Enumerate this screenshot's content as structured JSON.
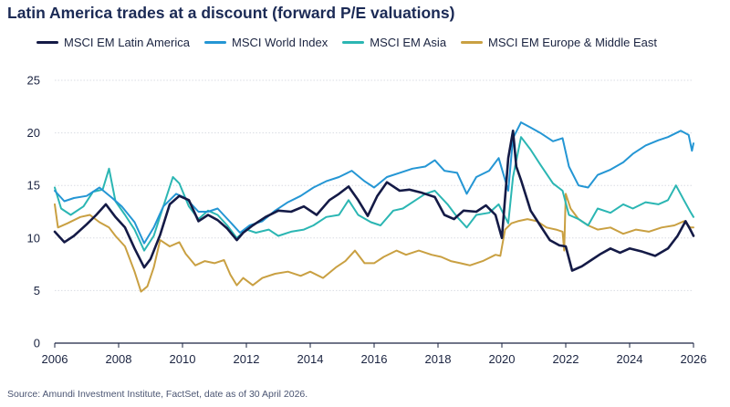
{
  "title": "Latin America trades at a discount (forward P/E valuations)",
  "source": "Source: Amundi Investment Institute, FactSet, date as of 30 April 2026.",
  "chart_data": {
    "type": "line",
    "title": "Latin America trades at a discount (forward P/E valuations)",
    "xlabel": "",
    "ylabel": "",
    "xlim": [
      2006,
      2026
    ],
    "ylim": [
      0,
      25
    ],
    "x_ticks": [
      "2006",
      "2008",
      "2010",
      "2012",
      "2014",
      "2016",
      "2018",
      "2020",
      "2022",
      "2024",
      "2026"
    ],
    "y_ticks": [
      "0",
      "5",
      "10",
      "15",
      "20",
      "25"
    ],
    "grid": "horizontal",
    "legend_position": "top",
    "series": [
      {
        "name": "MSCI EM Latin America",
        "color": "#141a46",
        "points": [
          [
            2006.0,
            10.6
          ],
          [
            2006.3,
            9.6
          ],
          [
            2006.6,
            10.2
          ],
          [
            2007.0,
            11.3
          ],
          [
            2007.3,
            12.2
          ],
          [
            2007.6,
            13.2
          ],
          [
            2007.9,
            12.0
          ],
          [
            2008.2,
            11.0
          ],
          [
            2008.5,
            9.0
          ],
          [
            2008.8,
            7.2
          ],
          [
            2009.0,
            8.0
          ],
          [
            2009.3,
            10.3
          ],
          [
            2009.6,
            13.2
          ],
          [
            2009.9,
            14.0
          ],
          [
            2010.2,
            13.6
          ],
          [
            2010.5,
            11.6
          ],
          [
            2010.8,
            12.2
          ],
          [
            2011.1,
            11.7
          ],
          [
            2011.4,
            10.9
          ],
          [
            2011.7,
            9.8
          ],
          [
            2011.9,
            10.5
          ],
          [
            2012.2,
            11.2
          ],
          [
            2012.6,
            12.0
          ],
          [
            2013.0,
            12.6
          ],
          [
            2013.4,
            12.5
          ],
          [
            2013.8,
            13.0
          ],
          [
            2014.2,
            12.2
          ],
          [
            2014.6,
            13.6
          ],
          [
            2014.9,
            14.2
          ],
          [
            2015.2,
            14.9
          ],
          [
            2015.5,
            13.6
          ],
          [
            2015.8,
            12.1
          ],
          [
            2016.1,
            14.0
          ],
          [
            2016.4,
            15.3
          ],
          [
            2016.8,
            14.5
          ],
          [
            2017.1,
            14.6
          ],
          [
            2017.5,
            14.3
          ],
          [
            2017.9,
            13.9
          ],
          [
            2018.2,
            12.2
          ],
          [
            2018.5,
            11.8
          ],
          [
            2018.8,
            12.6
          ],
          [
            2019.2,
            12.5
          ],
          [
            2019.5,
            13.1
          ],
          [
            2019.8,
            12.2
          ],
          [
            2020.0,
            10.0
          ],
          [
            2020.1,
            13.8
          ],
          [
            2020.2,
            17.6
          ],
          [
            2020.35,
            20.2
          ],
          [
            2020.45,
            16.8
          ],
          [
            2020.6,
            15.5
          ],
          [
            2020.9,
            12.6
          ],
          [
            2021.2,
            11.2
          ],
          [
            2021.5,
            9.8
          ],
          [
            2021.8,
            9.3
          ],
          [
            2022.0,
            9.2
          ],
          [
            2022.2,
            6.9
          ],
          [
            2022.5,
            7.3
          ],
          [
            2022.8,
            7.9
          ],
          [
            2023.1,
            8.5
          ],
          [
            2023.4,
            9.0
          ],
          [
            2023.7,
            8.6
          ],
          [
            2024.0,
            9.0
          ],
          [
            2024.4,
            8.7
          ],
          [
            2024.8,
            8.3
          ],
          [
            2025.2,
            9.0
          ],
          [
            2025.5,
            10.2
          ],
          [
            2025.75,
            11.6
          ],
          [
            2025.9,
            10.8
          ],
          [
            2026.0,
            10.2
          ]
        ]
      },
      {
        "name": "MSCI World Index",
        "color": "#2496d4",
        "points": [
          [
            2006.0,
            14.5
          ],
          [
            2006.3,
            13.5
          ],
          [
            2006.6,
            13.8
          ],
          [
            2007.0,
            14.0
          ],
          [
            2007.4,
            14.8
          ],
          [
            2007.8,
            13.8
          ],
          [
            2008.1,
            13.0
          ],
          [
            2008.5,
            11.5
          ],
          [
            2008.8,
            9.5
          ],
          [
            2009.1,
            11.0
          ],
          [
            2009.4,
            13.0
          ],
          [
            2009.8,
            14.2
          ],
          [
            2010.1,
            13.8
          ],
          [
            2010.5,
            12.5
          ],
          [
            2010.8,
            12.5
          ],
          [
            2011.1,
            12.8
          ],
          [
            2011.5,
            11.5
          ],
          [
            2011.8,
            10.5
          ],
          [
            2012.1,
            11.2
          ],
          [
            2012.5,
            11.6
          ],
          [
            2012.9,
            12.6
          ],
          [
            2013.3,
            13.4
          ],
          [
            2013.7,
            14.0
          ],
          [
            2014.1,
            14.8
          ],
          [
            2014.5,
            15.4
          ],
          [
            2014.9,
            15.8
          ],
          [
            2015.3,
            16.4
          ],
          [
            2015.7,
            15.4
          ],
          [
            2016.0,
            14.8
          ],
          [
            2016.4,
            15.8
          ],
          [
            2016.8,
            16.2
          ],
          [
            2017.2,
            16.6
          ],
          [
            2017.6,
            16.8
          ],
          [
            2017.9,
            17.4
          ],
          [
            2018.2,
            16.4
          ],
          [
            2018.6,
            16.2
          ],
          [
            2018.9,
            14.2
          ],
          [
            2019.2,
            15.8
          ],
          [
            2019.6,
            16.4
          ],
          [
            2019.9,
            17.6
          ],
          [
            2020.2,
            14.5
          ],
          [
            2020.35,
            19.5
          ],
          [
            2020.6,
            21.0
          ],
          [
            2020.9,
            20.5
          ],
          [
            2021.2,
            20.0
          ],
          [
            2021.6,
            19.2
          ],
          [
            2021.9,
            19.5
          ],
          [
            2022.1,
            16.8
          ],
          [
            2022.4,
            15.0
          ],
          [
            2022.7,
            14.8
          ],
          [
            2023.0,
            16.0
          ],
          [
            2023.4,
            16.5
          ],
          [
            2023.8,
            17.2
          ],
          [
            2024.1,
            18.0
          ],
          [
            2024.5,
            18.8
          ],
          [
            2024.9,
            19.3
          ],
          [
            2025.2,
            19.6
          ],
          [
            2025.6,
            20.2
          ],
          [
            2025.85,
            19.8
          ],
          [
            2025.95,
            18.3
          ],
          [
            2026.0,
            19.0
          ]
        ]
      },
      {
        "name": "MSCI EM Asia",
        "color": "#2bb6b3",
        "points": [
          [
            2006.0,
            14.8
          ],
          [
            2006.2,
            12.8
          ],
          [
            2006.5,
            12.2
          ],
          [
            2006.9,
            13.0
          ],
          [
            2007.2,
            14.4
          ],
          [
            2007.5,
            14.6
          ],
          [
            2007.7,
            16.6
          ],
          [
            2007.9,
            13.5
          ],
          [
            2008.2,
            12.2
          ],
          [
            2008.5,
            10.8
          ],
          [
            2008.8,
            8.8
          ],
          [
            2009.1,
            10.2
          ],
          [
            2009.4,
            13.0
          ],
          [
            2009.7,
            15.8
          ],
          [
            2009.9,
            15.2
          ],
          [
            2010.2,
            13.0
          ],
          [
            2010.5,
            11.8
          ],
          [
            2010.8,
            12.6
          ],
          [
            2011.1,
            12.2
          ],
          [
            2011.4,
            11.2
          ],
          [
            2011.7,
            10.0
          ],
          [
            2012.0,
            10.8
          ],
          [
            2012.3,
            10.5
          ],
          [
            2012.7,
            10.8
          ],
          [
            2013.0,
            10.2
          ],
          [
            2013.4,
            10.6
          ],
          [
            2013.8,
            10.8
          ],
          [
            2014.1,
            11.2
          ],
          [
            2014.5,
            12.0
          ],
          [
            2014.9,
            12.2
          ],
          [
            2015.2,
            13.6
          ],
          [
            2015.5,
            12.2
          ],
          [
            2015.9,
            11.5
          ],
          [
            2016.2,
            11.2
          ],
          [
            2016.6,
            12.6
          ],
          [
            2016.9,
            12.8
          ],
          [
            2017.3,
            13.6
          ],
          [
            2017.6,
            14.2
          ],
          [
            2017.9,
            14.5
          ],
          [
            2018.3,
            13.2
          ],
          [
            2018.6,
            12.0
          ],
          [
            2018.9,
            11.0
          ],
          [
            2019.2,
            12.2
          ],
          [
            2019.6,
            12.4
          ],
          [
            2019.9,
            13.2
          ],
          [
            2020.2,
            11.4
          ],
          [
            2020.35,
            15.8
          ],
          [
            2020.6,
            19.6
          ],
          [
            2020.9,
            18.4
          ],
          [
            2021.2,
            17.0
          ],
          [
            2021.6,
            15.2
          ],
          [
            2021.9,
            14.5
          ],
          [
            2022.1,
            12.2
          ],
          [
            2022.4,
            11.8
          ],
          [
            2022.7,
            11.2
          ],
          [
            2023.0,
            12.8
          ],
          [
            2023.4,
            12.4
          ],
          [
            2023.8,
            13.2
          ],
          [
            2024.1,
            12.8
          ],
          [
            2024.5,
            13.4
          ],
          [
            2024.9,
            13.2
          ],
          [
            2025.2,
            13.6
          ],
          [
            2025.45,
            15.0
          ],
          [
            2025.7,
            13.6
          ],
          [
            2025.9,
            12.5
          ],
          [
            2026.0,
            12.0
          ]
        ]
      },
      {
        "name": "MSCI EM Europe & Middle East",
        "color": "#c9a042",
        "points": [
          [
            2006.0,
            13.2
          ],
          [
            2006.1,
            11.0
          ],
          [
            2006.4,
            11.4
          ],
          [
            2006.8,
            12.0
          ],
          [
            2007.1,
            12.2
          ],
          [
            2007.4,
            11.5
          ],
          [
            2007.7,
            11.0
          ],
          [
            2007.9,
            10.2
          ],
          [
            2008.2,
            9.2
          ],
          [
            2008.5,
            6.8
          ],
          [
            2008.7,
            4.9
          ],
          [
            2008.9,
            5.4
          ],
          [
            2009.1,
            7.2
          ],
          [
            2009.3,
            9.8
          ],
          [
            2009.6,
            9.2
          ],
          [
            2009.9,
            9.6
          ],
          [
            2010.1,
            8.5
          ],
          [
            2010.4,
            7.4
          ],
          [
            2010.7,
            7.8
          ],
          [
            2011.0,
            7.6
          ],
          [
            2011.3,
            7.9
          ],
          [
            2011.5,
            6.5
          ],
          [
            2011.7,
            5.5
          ],
          [
            2011.9,
            6.2
          ],
          [
            2012.2,
            5.5
          ],
          [
            2012.5,
            6.2
          ],
          [
            2012.9,
            6.6
          ],
          [
            2013.3,
            6.8
          ],
          [
            2013.7,
            6.4
          ],
          [
            2014.0,
            6.8
          ],
          [
            2014.4,
            6.2
          ],
          [
            2014.8,
            7.2
          ],
          [
            2015.1,
            7.8
          ],
          [
            2015.4,
            8.8
          ],
          [
            2015.7,
            7.6
          ],
          [
            2016.0,
            7.6
          ],
          [
            2016.3,
            8.2
          ],
          [
            2016.7,
            8.8
          ],
          [
            2017.0,
            8.4
          ],
          [
            2017.4,
            8.8
          ],
          [
            2017.8,
            8.4
          ],
          [
            2018.1,
            8.2
          ],
          [
            2018.4,
            7.8
          ],
          [
            2018.7,
            7.6
          ],
          [
            2019.0,
            7.4
          ],
          [
            2019.4,
            7.8
          ],
          [
            2019.8,
            8.4
          ],
          [
            2019.95,
            8.3
          ],
          [
            2020.1,
            10.8
          ],
          [
            2020.3,
            11.4
          ],
          [
            2020.5,
            11.6
          ],
          [
            2020.8,
            11.8
          ],
          [
            2021.1,
            11.6
          ],
          [
            2021.4,
            11.0
          ],
          [
            2021.7,
            10.8
          ],
          [
            2021.9,
            10.6
          ],
          [
            2021.95,
            8.8
          ],
          [
            2022.0,
            14.2
          ],
          [
            2022.15,
            12.8
          ],
          [
            2022.4,
            11.8
          ],
          [
            2022.7,
            11.2
          ],
          [
            2023.0,
            10.8
          ],
          [
            2023.4,
            11.0
          ],
          [
            2023.8,
            10.4
          ],
          [
            2024.2,
            10.8
          ],
          [
            2024.6,
            10.6
          ],
          [
            2025.0,
            11.0
          ],
          [
            2025.4,
            11.2
          ],
          [
            2025.7,
            11.6
          ],
          [
            2025.9,
            11.0
          ],
          [
            2026.0,
            11.0
          ]
        ]
      }
    ]
  }
}
